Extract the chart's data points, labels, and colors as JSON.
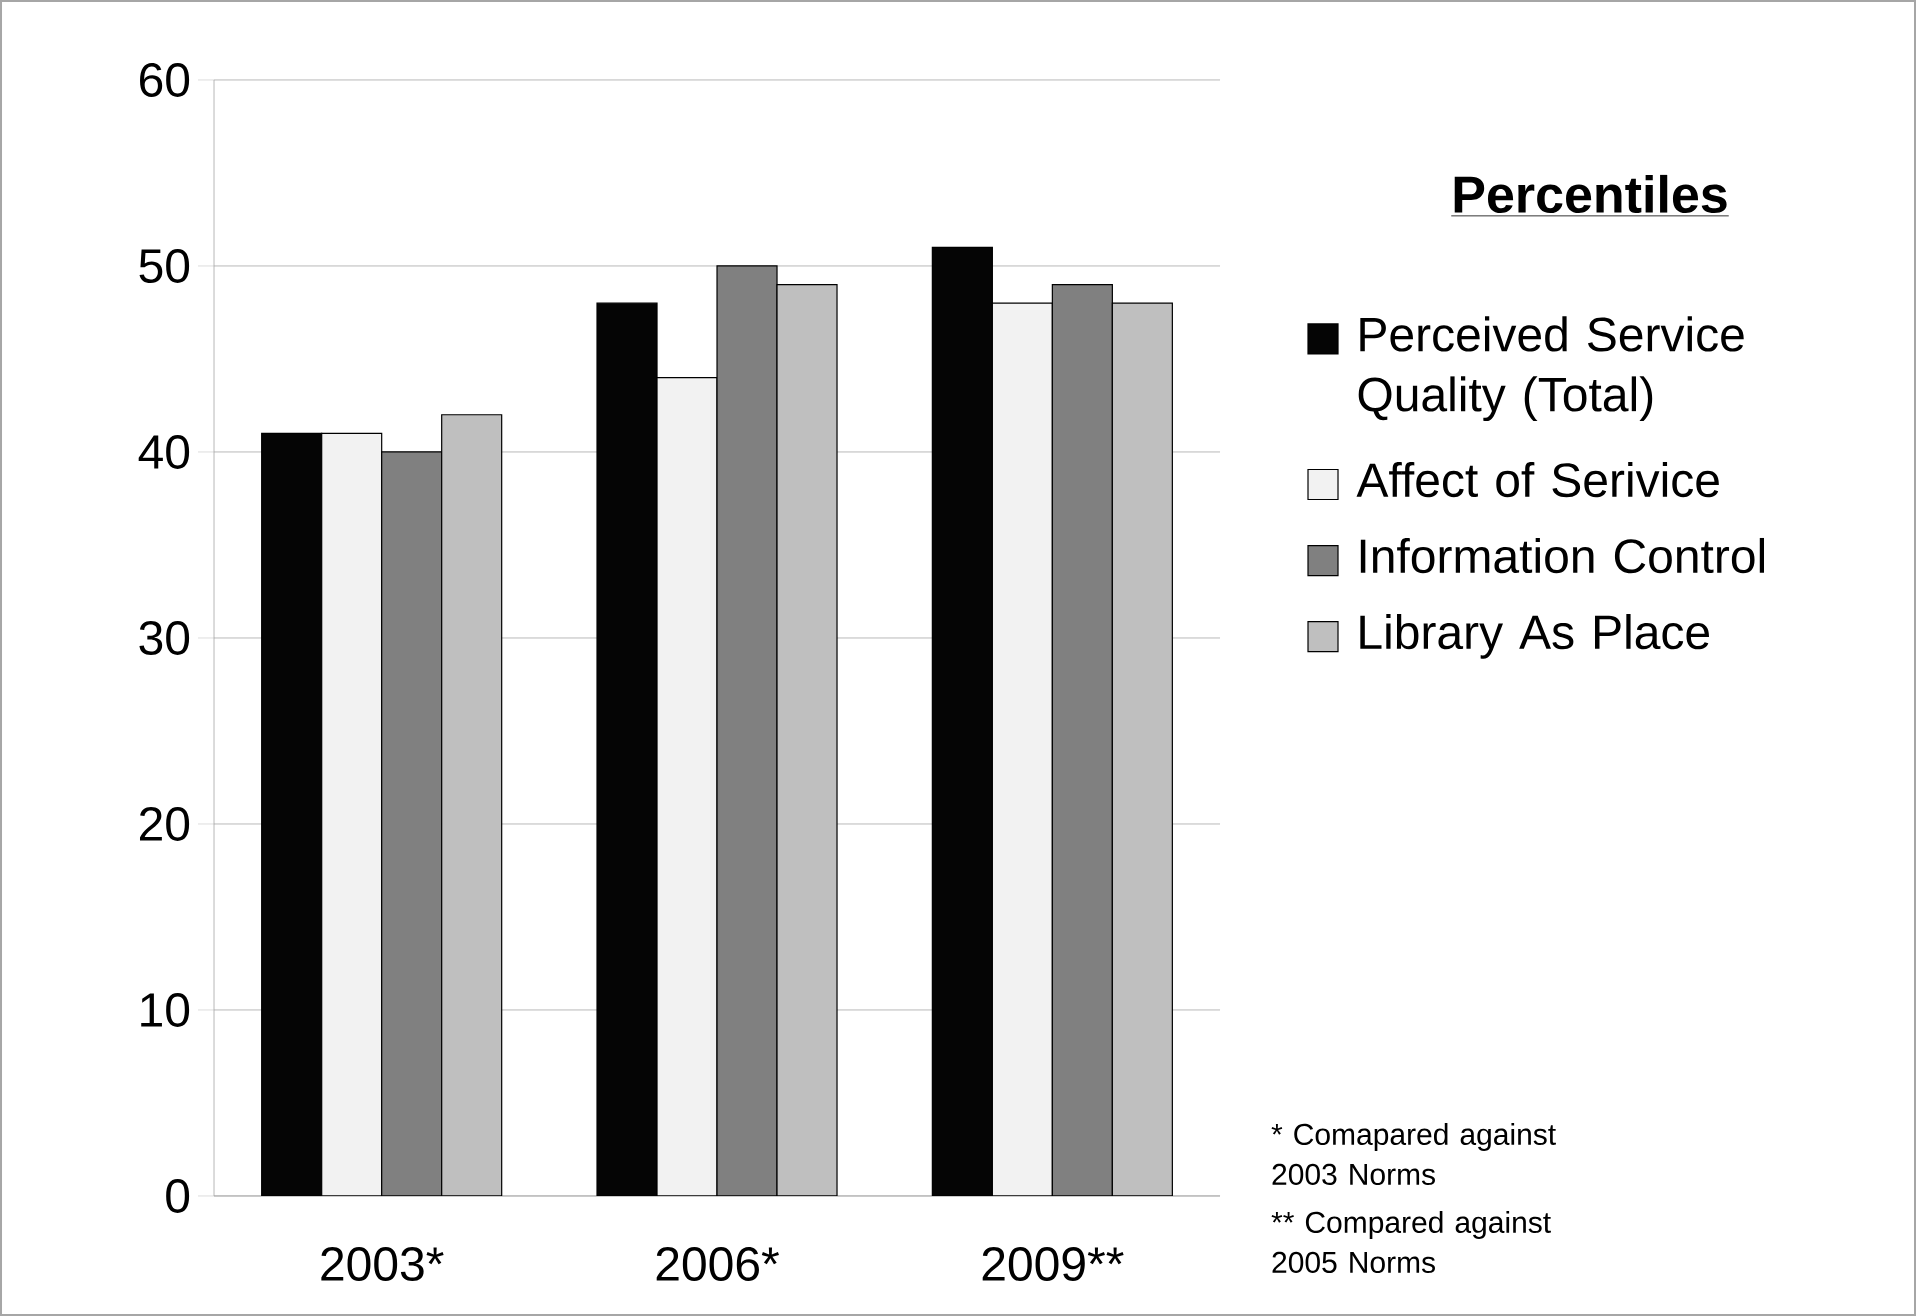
{
  "chart_data": {
    "type": "bar",
    "categories": [
      "2003*",
      "2006*",
      "2009**"
    ],
    "series": [
      {
        "name": "Perceived Service Quality (Total)",
        "color": "#050505",
        "values": [
          41,
          48,
          51
        ]
      },
      {
        "name": "Affect of Serivice",
        "color": "#f2f2f2",
        "values": [
          41,
          44,
          48
        ]
      },
      {
        "name": "Information Control",
        "color": "#808080",
        "values": [
          40,
          50,
          49
        ]
      },
      {
        "name": "Library As Place",
        "color": "#bfbfbf",
        "values": [
          42,
          49,
          48
        ]
      }
    ],
    "ylim": [
      0,
      60
    ],
    "yticks": [
      0,
      10,
      20,
      30,
      40,
      50,
      60
    ],
    "grid": "y",
    "legend": "right",
    "legend_title": "Percentiles",
    "annotations": [
      "* Comapared against 2003 Norms",
      "** Compared against 2005 Norms"
    ]
  }
}
